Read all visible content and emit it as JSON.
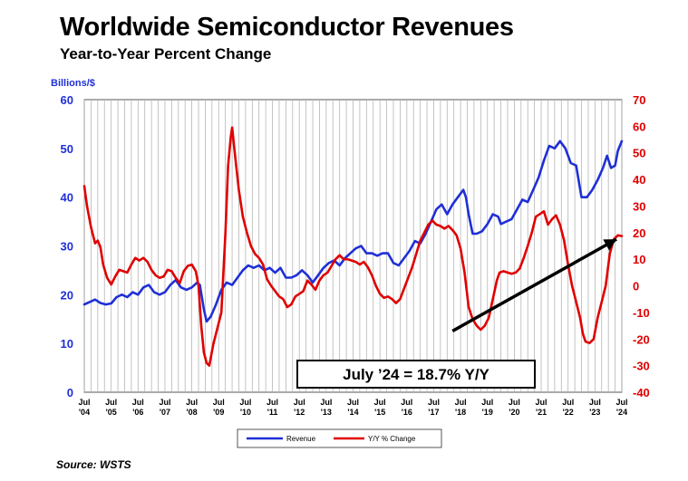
{
  "title": "Worldwide Semiconductor Revenues",
  "subtitle": "Year-to-Year Percent Change",
  "source": "Source: WSTS",
  "chart_data": {
    "type": "line",
    "left_axis_label": "Billions/$",
    "left_ylim": [
      0,
      60
    ],
    "left_ticks": [
      0,
      10,
      20,
      30,
      40,
      50,
      60
    ],
    "right_ylim": [
      -40,
      70
    ],
    "right_ticks": [
      -40,
      -30,
      -20,
      -10,
      0,
      10,
      20,
      30,
      40,
      50,
      60,
      70
    ],
    "x_range": [
      2004.5,
      2024.5
    ],
    "x_tick_labels": [
      {
        "x": 2004.5,
        "top": "Jul",
        "bottom": "'04"
      },
      {
        "x": 2005.5,
        "top": "Jul",
        "bottom": "'05"
      },
      {
        "x": 2006.5,
        "top": "Jul",
        "bottom": "'06"
      },
      {
        "x": 2007.5,
        "top": "Jul",
        "bottom": "'07"
      },
      {
        "x": 2008.5,
        "top": "Jul",
        "bottom": "'08"
      },
      {
        "x": 2009.5,
        "top": "Jul",
        "bottom": "'09"
      },
      {
        "x": 2010.5,
        "top": "Jul",
        "bottom": "'10"
      },
      {
        "x": 2011.5,
        "top": "Jul",
        "bottom": "'11"
      },
      {
        "x": 2012.5,
        "top": "Jul",
        "bottom": "'12"
      },
      {
        "x": 2013.5,
        "top": "Jul",
        "bottom": "'13"
      },
      {
        "x": 2014.5,
        "top": "Jul",
        "bottom": "'14"
      },
      {
        "x": 2015.5,
        "top": "Jul",
        "bottom": "'15"
      },
      {
        "x": 2016.5,
        "top": "Jul",
        "bottom": "'16"
      },
      {
        "x": 2017.5,
        "top": "Jul",
        "bottom": "'17"
      },
      {
        "x": 2018.5,
        "top": "Jul",
        "bottom": "'18"
      },
      {
        "x": 2019.5,
        "top": "Jul",
        "bottom": "'19"
      },
      {
        "x": 2020.5,
        "top": "Jul",
        "bottom": "'20"
      },
      {
        "x": 2021.5,
        "top": "Jul",
        "bottom": "'21"
      },
      {
        "x": 2022.5,
        "top": "Jul",
        "bottom": "'22"
      },
      {
        "x": 2023.5,
        "top": "Jul",
        "bottom": "'23"
      },
      {
        "x": 2024.5,
        "top": "Jul",
        "bottom": "'24"
      }
    ],
    "series": [
      {
        "name": "Revenue",
        "axis": "left",
        "color": "#1f2fd6",
        "points": [
          [
            2004.5,
            18.0
          ],
          [
            2004.7,
            18.5
          ],
          [
            2004.9,
            19.0
          ],
          [
            2005.1,
            18.3
          ],
          [
            2005.3,
            18.0
          ],
          [
            2005.5,
            18.2
          ],
          [
            2005.7,
            19.5
          ],
          [
            2005.9,
            20.0
          ],
          [
            2006.1,
            19.5
          ],
          [
            2006.3,
            20.5
          ],
          [
            2006.5,
            20.0
          ],
          [
            2006.7,
            21.5
          ],
          [
            2006.9,
            22.0
          ],
          [
            2007.1,
            20.5
          ],
          [
            2007.3,
            20.0
          ],
          [
            2007.5,
            20.5
          ],
          [
            2007.7,
            22.0
          ],
          [
            2007.9,
            23.0
          ],
          [
            2008.1,
            21.5
          ],
          [
            2008.3,
            21.0
          ],
          [
            2008.5,
            21.5
          ],
          [
            2008.7,
            22.5
          ],
          [
            2008.8,
            22.0
          ],
          [
            2008.95,
            17.0
          ],
          [
            2009.05,
            14.5
          ],
          [
            2009.2,
            15.5
          ],
          [
            2009.4,
            18.0
          ],
          [
            2009.6,
            21.0
          ],
          [
            2009.8,
            22.5
          ],
          [
            2010.0,
            22.0
          ],
          [
            2010.2,
            23.5
          ],
          [
            2010.4,
            25.0
          ],
          [
            2010.6,
            26.0
          ],
          [
            2010.8,
            25.5
          ],
          [
            2011.0,
            26.0
          ],
          [
            2011.2,
            25.0
          ],
          [
            2011.4,
            25.5
          ],
          [
            2011.6,
            24.5
          ],
          [
            2011.8,
            25.5
          ],
          [
            2012.0,
            23.5
          ],
          [
            2012.2,
            23.5
          ],
          [
            2012.4,
            24.0
          ],
          [
            2012.6,
            25.0
          ],
          [
            2012.8,
            24.0
          ],
          [
            2013.0,
            22.5
          ],
          [
            2013.2,
            24.0
          ],
          [
            2013.4,
            25.5
          ],
          [
            2013.6,
            26.5
          ],
          [
            2013.8,
            27.0
          ],
          [
            2014.0,
            26.0
          ],
          [
            2014.2,
            27.5
          ],
          [
            2014.4,
            28.5
          ],
          [
            2014.6,
            29.5
          ],
          [
            2014.8,
            30.0
          ],
          [
            2015.0,
            28.5
          ],
          [
            2015.2,
            28.5
          ],
          [
            2015.4,
            28.0
          ],
          [
            2015.6,
            28.5
          ],
          [
            2015.8,
            28.5
          ],
          [
            2016.0,
            26.5
          ],
          [
            2016.2,
            26.0
          ],
          [
            2016.4,
            27.5
          ],
          [
            2016.6,
            29.0
          ],
          [
            2016.8,
            31.0
          ],
          [
            2017.0,
            30.5
          ],
          [
            2017.2,
            32.5
          ],
          [
            2017.4,
            35.0
          ],
          [
            2017.6,
            37.5
          ],
          [
            2017.8,
            38.5
          ],
          [
            2018.0,
            36.5
          ],
          [
            2018.2,
            38.5
          ],
          [
            2018.4,
            40.0
          ],
          [
            2018.6,
            41.5
          ],
          [
            2018.7,
            40.0
          ],
          [
            2018.8,
            36.5
          ],
          [
            2018.95,
            32.5
          ],
          [
            2019.1,
            32.5
          ],
          [
            2019.3,
            33.0
          ],
          [
            2019.5,
            34.5
          ],
          [
            2019.7,
            36.5
          ],
          [
            2019.9,
            36.0
          ],
          [
            2020.0,
            34.5
          ],
          [
            2020.2,
            35.0
          ],
          [
            2020.4,
            35.5
          ],
          [
            2020.6,
            37.5
          ],
          [
            2020.8,
            39.5
          ],
          [
            2021.0,
            39.0
          ],
          [
            2021.2,
            41.5
          ],
          [
            2021.4,
            44.0
          ],
          [
            2021.6,
            47.5
          ],
          [
            2021.8,
            50.5
          ],
          [
            2022.0,
            50.0
          ],
          [
            2022.2,
            51.5
          ],
          [
            2022.4,
            50.0
          ],
          [
            2022.6,
            47.0
          ],
          [
            2022.8,
            46.5
          ],
          [
            2023.0,
            40.0
          ],
          [
            2023.2,
            40.0
          ],
          [
            2023.4,
            41.5
          ],
          [
            2023.6,
            43.5
          ],
          [
            2023.8,
            46.0
          ],
          [
            2023.95,
            48.5
          ],
          [
            2024.1,
            46.0
          ],
          [
            2024.25,
            46.5
          ],
          [
            2024.35,
            49.5
          ],
          [
            2024.5,
            51.5
          ]
        ]
      },
      {
        "name": "Y/Y % Change",
        "axis": "right",
        "color": "#e00000",
        "points": [
          [
            2004.5,
            37.5
          ],
          [
            2004.6,
            30.0
          ],
          [
            2004.75,
            22.0
          ],
          [
            2004.9,
            16.0
          ],
          [
            2005.0,
            17.0
          ],
          [
            2005.1,
            14.5
          ],
          [
            2005.2,
            8.0
          ],
          [
            2005.35,
            3.0
          ],
          [
            2005.5,
            0.5
          ],
          [
            2005.65,
            3.5
          ],
          [
            2005.8,
            6.0
          ],
          [
            2005.95,
            5.5
          ],
          [
            2006.1,
            5.0
          ],
          [
            2006.25,
            8.0
          ],
          [
            2006.4,
            10.5
          ],
          [
            2006.55,
            9.5
          ],
          [
            2006.7,
            10.5
          ],
          [
            2006.85,
            9.0
          ],
          [
            2007.0,
            6.0
          ],
          [
            2007.15,
            4.0
          ],
          [
            2007.3,
            3.0
          ],
          [
            2007.45,
            3.5
          ],
          [
            2007.6,
            6.0
          ],
          [
            2007.75,
            5.5
          ],
          [
            2007.9,
            3.0
          ],
          [
            2008.05,
            1.0
          ],
          [
            2008.2,
            5.5
          ],
          [
            2008.35,
            7.5
          ],
          [
            2008.5,
            8.0
          ],
          [
            2008.65,
            5.5
          ],
          [
            2008.75,
            0.0
          ],
          [
            2008.85,
            -15.0
          ],
          [
            2008.95,
            -25.0
          ],
          [
            2009.05,
            -29.0
          ],
          [
            2009.15,
            -30.0
          ],
          [
            2009.3,
            -22.0
          ],
          [
            2009.45,
            -16.0
          ],
          [
            2009.6,
            -10.0
          ],
          [
            2009.75,
            20.0
          ],
          [
            2009.85,
            45.0
          ],
          [
            2009.95,
            56.0
          ],
          [
            2010.0,
            59.5
          ],
          [
            2010.1,
            50.0
          ],
          [
            2010.25,
            36.0
          ],
          [
            2010.4,
            26.0
          ],
          [
            2010.55,
            20.0
          ],
          [
            2010.7,
            15.0
          ],
          [
            2010.85,
            12.0
          ],
          [
            2011.0,
            10.5
          ],
          [
            2011.15,
            8.0
          ],
          [
            2011.3,
            2.5
          ],
          [
            2011.45,
            0.0
          ],
          [
            2011.6,
            -2.0
          ],
          [
            2011.75,
            -4.0
          ],
          [
            2011.9,
            -5.0
          ],
          [
            2012.05,
            -8.0
          ],
          [
            2012.2,
            -7.0
          ],
          [
            2012.35,
            -4.0
          ],
          [
            2012.5,
            -3.0
          ],
          [
            2012.65,
            -2.0
          ],
          [
            2012.8,
            2.0
          ],
          [
            2012.95,
            0.5
          ],
          [
            2013.1,
            -1.5
          ],
          [
            2013.25,
            2.0
          ],
          [
            2013.4,
            4.0
          ],
          [
            2013.55,
            5.0
          ],
          [
            2013.7,
            7.5
          ],
          [
            2013.85,
            10.0
          ],
          [
            2014.0,
            11.5
          ],
          [
            2014.15,
            10.0
          ],
          [
            2014.3,
            10.0
          ],
          [
            2014.45,
            9.5
          ],
          [
            2014.6,
            9.0
          ],
          [
            2014.75,
            8.0
          ],
          [
            2014.9,
            9.0
          ],
          [
            2015.05,
            7.0
          ],
          [
            2015.2,
            4.0
          ],
          [
            2015.35,
            0.0
          ],
          [
            2015.5,
            -3.0
          ],
          [
            2015.65,
            -4.5
          ],
          [
            2015.8,
            -4.0
          ],
          [
            2015.95,
            -5.0
          ],
          [
            2016.1,
            -6.5
          ],
          [
            2016.25,
            -5.0
          ],
          [
            2016.4,
            -1.0
          ],
          [
            2016.55,
            3.0
          ],
          [
            2016.7,
            7.0
          ],
          [
            2016.85,
            12.0
          ],
          [
            2017.0,
            17.0
          ],
          [
            2017.15,
            20.0
          ],
          [
            2017.3,
            23.0
          ],
          [
            2017.45,
            24.5
          ],
          [
            2017.6,
            23.0
          ],
          [
            2017.75,
            22.5
          ],
          [
            2017.9,
            21.5
          ],
          [
            2018.05,
            22.5
          ],
          [
            2018.2,
            21.0
          ],
          [
            2018.35,
            19.0
          ],
          [
            2018.5,
            14.0
          ],
          [
            2018.65,
            5.0
          ],
          [
            2018.8,
            -8.0
          ],
          [
            2018.95,
            -12.5
          ],
          [
            2019.1,
            -15.0
          ],
          [
            2019.25,
            -16.5
          ],
          [
            2019.4,
            -15.0
          ],
          [
            2019.55,
            -12.0
          ],
          [
            2019.7,
            -5.0
          ],
          [
            2019.85,
            2.0
          ],
          [
            2019.95,
            5.0
          ],
          [
            2020.1,
            5.5
          ],
          [
            2020.25,
            5.0
          ],
          [
            2020.4,
            4.5
          ],
          [
            2020.55,
            5.0
          ],
          [
            2020.7,
            6.5
          ],
          [
            2020.85,
            10.5
          ],
          [
            2021.0,
            15.0
          ],
          [
            2021.15,
            20.0
          ],
          [
            2021.3,
            26.0
          ],
          [
            2021.45,
            27.0
          ],
          [
            2021.6,
            28.0
          ],
          [
            2021.75,
            23.0
          ],
          [
            2021.9,
            25.0
          ],
          [
            2022.05,
            26.5
          ],
          [
            2022.2,
            23.0
          ],
          [
            2022.35,
            17.0
          ],
          [
            2022.5,
            8.0
          ],
          [
            2022.65,
            0.0
          ],
          [
            2022.8,
            -6.0
          ],
          [
            2022.95,
            -12.0
          ],
          [
            2023.05,
            -18.0
          ],
          [
            2023.15,
            -21.0
          ],
          [
            2023.3,
            -21.5
          ],
          [
            2023.45,
            -20.0
          ],
          [
            2023.6,
            -12.0
          ],
          [
            2023.75,
            -6.0
          ],
          [
            2023.9,
            0.0
          ],
          [
            2024.05,
            12.0
          ],
          [
            2024.2,
            17.5
          ],
          [
            2024.35,
            19.0
          ],
          [
            2024.5,
            18.7
          ]
        ]
      }
    ],
    "annotation": {
      "text": "July ’24 = 18.7% Y/Y",
      "arrow_from": [
        2018.2,
        -17.0
      ],
      "arrow_to": [
        2024.3,
        17.5
      ]
    }
  },
  "legend": {
    "revenue_label": "Revenue",
    "yoy_label": "Y/Y % Change"
  }
}
